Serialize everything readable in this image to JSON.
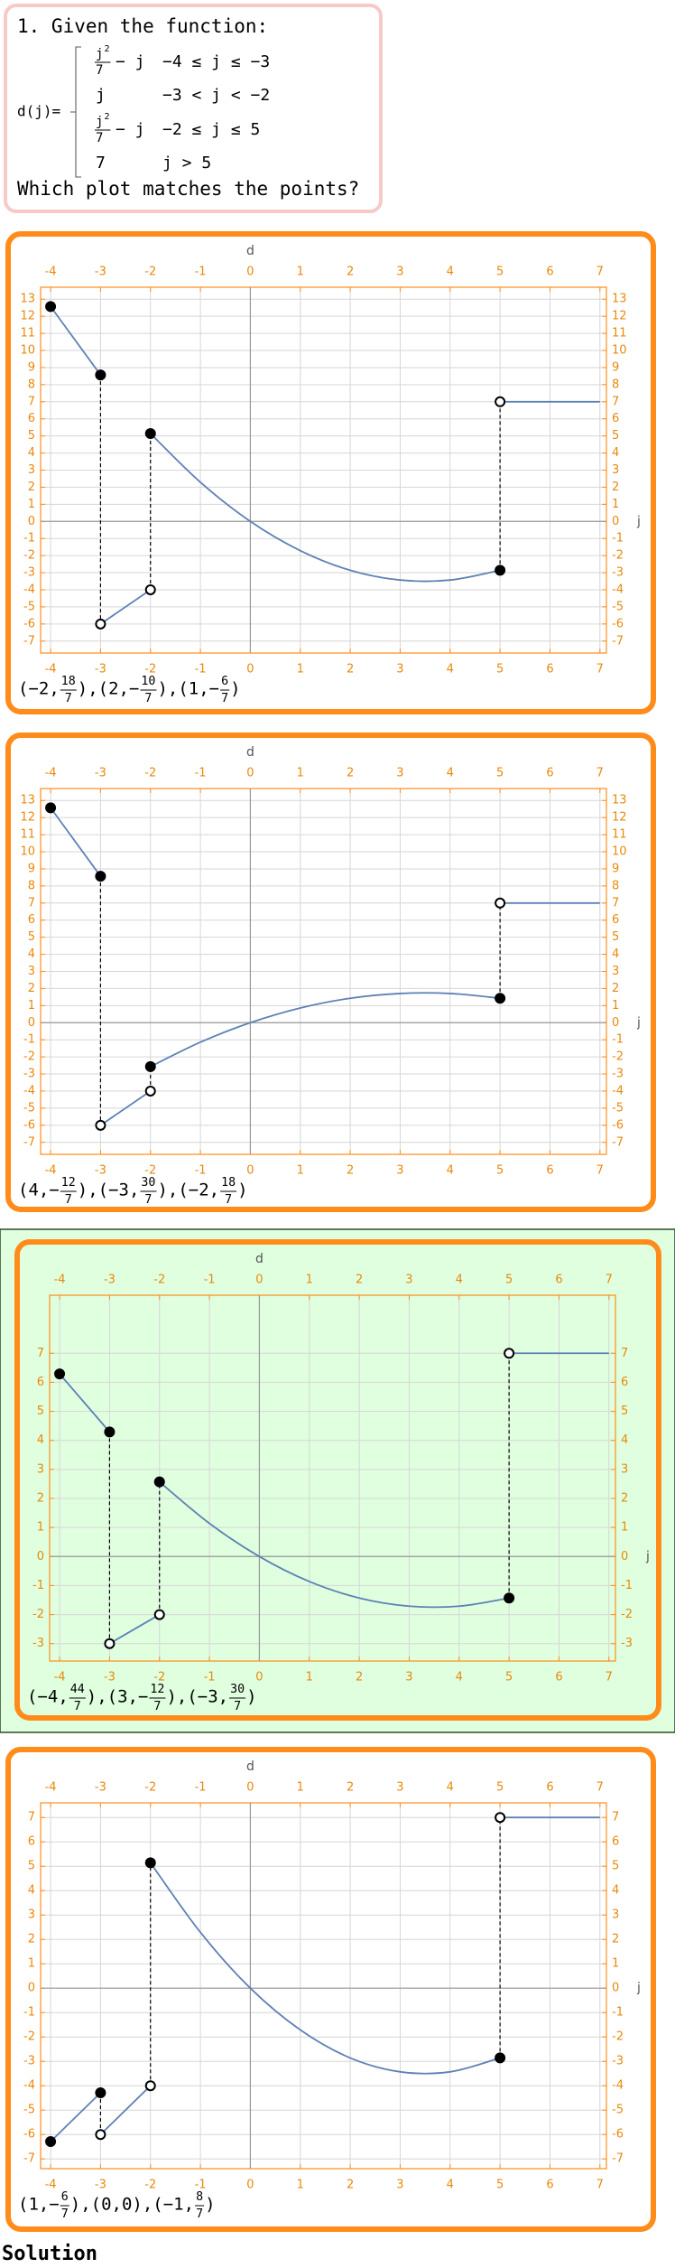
{
  "question": {
    "title": "1. Given the function:",
    "lhs": "d(j)=",
    "cases": [
      {
        "expr": {
          "num": "j",
          "sup": "2",
          "den": "7",
          "rest": "− j"
        },
        "condition": "−4 ≤ j ≤ −3"
      },
      {
        "expr": {
          "text": "j"
        },
        "condition": "−3 < j < −2"
      },
      {
        "expr": {
          "num": "j",
          "sup": "2",
          "den": "7",
          "rest": "− j"
        },
        "condition": "−2 ≤ j ≤ 5"
      },
      {
        "expr": {
          "text": "7"
        },
        "condition": "j > 5"
      }
    ],
    "prompt": "Which plot matches the points?"
  },
  "chart_data": [
    {
      "type": "line",
      "y_label": "d",
      "x_label": "j",
      "color": "#5e81b5",
      "grid": true,
      "selected": false,
      "xlim": [
        -4.2,
        7.13
      ],
      "ylim": [
        -7.7,
        13.7
      ],
      "xticks": [
        -4,
        -3,
        -2,
        -1,
        0,
        1,
        2,
        3,
        4,
        5,
        6,
        7
      ],
      "yticks": [
        -7,
        -6,
        -5,
        -4,
        -3,
        -2,
        -1,
        0,
        1,
        2,
        3,
        4,
        5,
        6,
        7,
        8,
        9,
        10,
        11,
        12,
        13
      ],
      "series": [
        {
          "x": [
            -4,
            -3
          ],
          "values": [
            12.57,
            8.57
          ],
          "start": "closed",
          "end": "closed"
        },
        {
          "x": [
            -3,
            -2
          ],
          "values": [
            -6,
            -4
          ],
          "start": "open",
          "end": "open"
        },
        {
          "x": [
            -2,
            -1,
            0,
            1,
            2,
            3,
            4,
            5
          ],
          "values": [
            5.14,
            2.29,
            0,
            -1.71,
            -2.86,
            -3.43,
            -3.43,
            -2.86
          ],
          "start": "closed",
          "end": "closed"
        },
        {
          "x": [
            5,
            7
          ],
          "values": [
            7,
            7
          ],
          "start": "open"
        }
      ],
      "caption": [
        "(−2,",
        {
          "num": "18",
          "den": "7"
        },
        "),(2,−",
        {
          "num": "10",
          "den": "7"
        },
        "),(1,−",
        {
          "num": "6",
          "den": "7"
        },
        ")"
      ]
    },
    {
      "type": "line",
      "y_label": "d",
      "x_label": "j",
      "color": "#5e81b5",
      "grid": true,
      "selected": false,
      "xlim": [
        -4.2,
        7.13
      ],
      "ylim": [
        -7.7,
        13.7
      ],
      "xticks": [
        -4,
        -3,
        -2,
        -1,
        0,
        1,
        2,
        3,
        4,
        5,
        6,
        7
      ],
      "yticks": [
        -7,
        -6,
        -5,
        -4,
        -3,
        -2,
        -1,
        0,
        1,
        2,
        3,
        4,
        5,
        6,
        7,
        8,
        9,
        10,
        11,
        12,
        13
      ],
      "series": [
        {
          "x": [
            -4,
            -3
          ],
          "values": [
            12.57,
            8.57
          ],
          "start": "closed",
          "end": "closed"
        },
        {
          "x": [
            -3,
            -2
          ],
          "values": [
            -6,
            -4
          ],
          "start": "open",
          "end": "open"
        },
        {
          "x": [
            -2,
            -1,
            0,
            1,
            2,
            3,
            4,
            5
          ],
          "values": [
            -2.57,
            -1.14,
            0,
            0.86,
            1.43,
            1.71,
            1.71,
            1.43
          ],
          "start": "closed",
          "end": "closed"
        },
        {
          "x": [
            5,
            7
          ],
          "values": [
            7,
            7
          ],
          "start": "open"
        }
      ],
      "caption": [
        "(4,−",
        {
          "num": "12",
          "den": "7"
        },
        "),(−3,",
        {
          "num": "30",
          "den": "7"
        },
        "),(−2,",
        {
          "num": "18",
          "den": "7"
        },
        ")"
      ]
    },
    {
      "type": "line",
      "y_label": "d",
      "x_label": "j",
      "color": "#5e81b5",
      "grid": true,
      "selected": true,
      "xlim": [
        -4.2,
        7.13
      ],
      "ylim": [
        -3.6,
        9.0
      ],
      "xticks": [
        -4,
        -3,
        -2,
        -1,
        0,
        1,
        2,
        3,
        4,
        5,
        6,
        7
      ],
      "yticks": [
        -3,
        -2,
        -1,
        0,
        1,
        2,
        3,
        4,
        5,
        6,
        7
      ],
      "series": [
        {
          "x": [
            -4,
            -3
          ],
          "values": [
            6.29,
            4.29
          ],
          "start": "closed",
          "end": "closed"
        },
        {
          "x": [
            -3,
            -2
          ],
          "values": [
            -3,
            -2
          ],
          "start": "open",
          "end": "open"
        },
        {
          "x": [
            -2,
            -1,
            0,
            1,
            2,
            3,
            4,
            5
          ],
          "values": [
            2.57,
            1.14,
            0,
            -0.86,
            -1.43,
            -1.71,
            -1.71,
            -1.43
          ],
          "start": "closed",
          "end": "closed"
        },
        {
          "x": [
            5,
            7
          ],
          "values": [
            7,
            7
          ],
          "start": "open"
        }
      ],
      "caption": [
        "(−4,",
        {
          "num": "44",
          "den": "7"
        },
        "),(3,−",
        {
          "num": "12",
          "den": "7"
        },
        "),(−3,",
        {
          "num": "30",
          "den": "7"
        },
        ")"
      ]
    },
    {
      "type": "line",
      "y_label": "d",
      "x_label": "j",
      "color": "#5e81b5",
      "grid": true,
      "selected": false,
      "xlim": [
        -4.2,
        7.13
      ],
      "ylim": [
        -7.4,
        7.6
      ],
      "xticks": [
        -4,
        -3,
        -2,
        -1,
        0,
        1,
        2,
        3,
        4,
        5,
        6,
        7
      ],
      "yticks": [
        -7,
        -6,
        -5,
        -4,
        -3,
        -2,
        -1,
        0,
        1,
        2,
        3,
        4,
        5,
        6,
        7
      ],
      "series": [
        {
          "x": [
            -4,
            -3
          ],
          "values": [
            -6.29,
            -4.29
          ],
          "start": "closed",
          "end": "closed"
        },
        {
          "x": [
            -3,
            -2
          ],
          "values": [
            -6,
            -4
          ],
          "start": "open",
          "end": "open"
        },
        {
          "x": [
            -2,
            -1,
            0,
            1,
            2,
            3,
            4,
            5
          ],
          "values": [
            5.14,
            2.29,
            0,
            -1.71,
            -2.86,
            -3.43,
            -3.43,
            -2.86
          ],
          "start": "closed",
          "end": "closed"
        },
        {
          "x": [
            5,
            7
          ],
          "values": [
            7,
            7
          ],
          "start": "open"
        }
      ],
      "caption": [
        "(1,−",
        {
          "num": "6",
          "den": "7"
        },
        "),(0,0),(−1,",
        {
          "num": "8",
          "den": "7"
        },
        ")"
      ]
    }
  ],
  "solution": "Solution"
}
